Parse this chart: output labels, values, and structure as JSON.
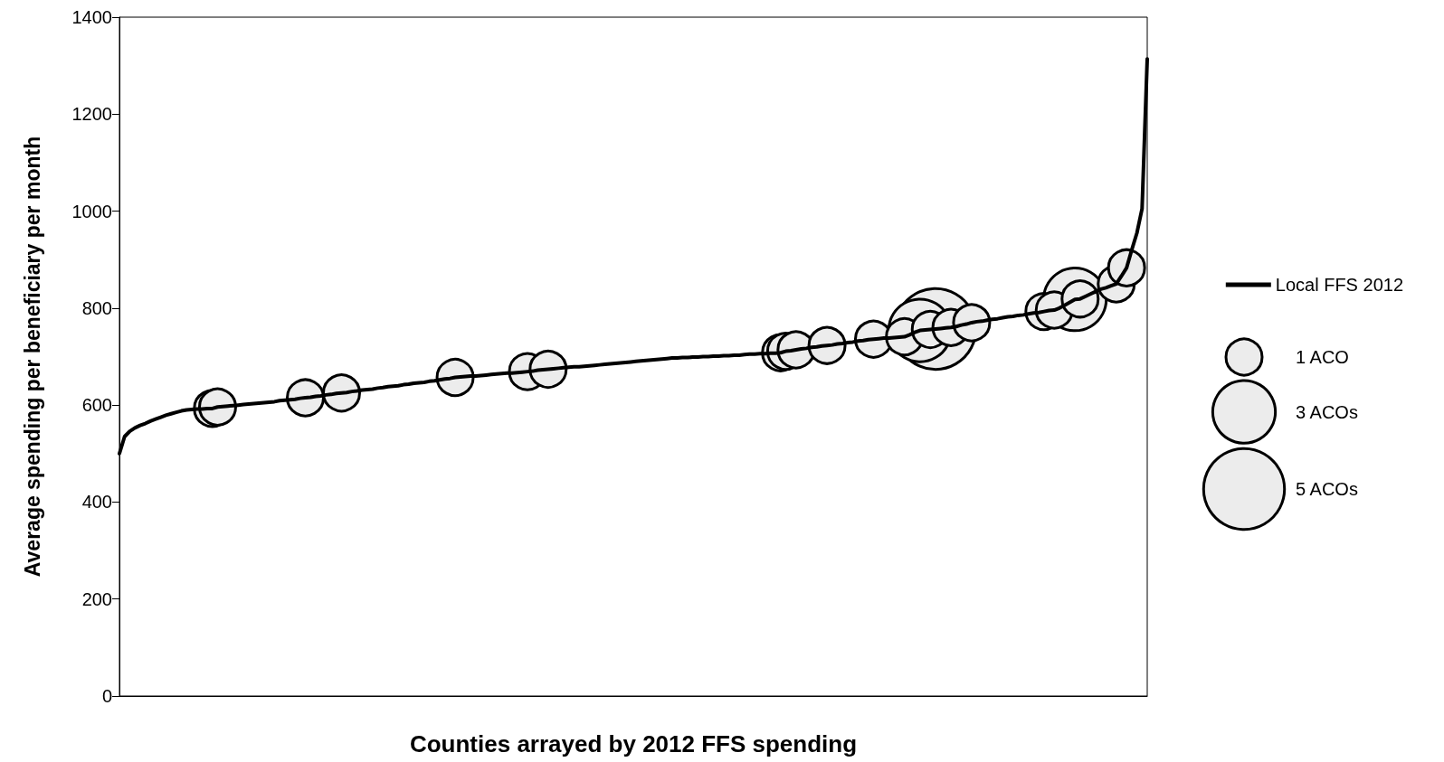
{
  "chart_data": {
    "type": "line",
    "xlabel": "Counties arrayed by 2012 FFS spending",
    "ylabel": "Average spending per beneficiary per month",
    "categories": [
      null,
      null,
      null,
      null,
      null,
      null,
      null,
      null,
      null,
      null,
      null,
      null,
      null,
      null,
      null,
      null,
      null,
      null,
      null,
      null,
      null,
      null,
      null,
      null,
      null,
      null,
      null,
      null,
      null,
      null,
      null,
      null,
      null,
      null,
      null,
      null,
      null,
      null,
      null,
      null,
      null,
      null,
      null,
      null,
      null,
      null,
      null,
      null,
      null,
      null,
      null,
      null,
      null,
      null,
      null,
      null,
      null,
      null,
      null,
      null,
      null,
      null,
      null,
      null,
      null,
      null,
      null,
      null,
      null,
      null,
      null,
      null,
      null,
      null,
      null,
      null,
      null,
      null,
      null,
      null,
      null,
      null,
      null,
      null,
      null,
      null,
      null,
      null,
      null,
      null,
      null,
      null,
      null,
      null,
      null,
      null,
      null,
      null,
      null,
      null,
      null,
      null,
      null,
      null,
      null,
      null,
      null,
      null,
      null,
      null,
      null,
      null,
      null,
      null,
      null,
      null,
      null,
      null,
      null,
      null,
      null,
      null,
      null,
      null,
      null,
      null,
      null,
      null,
      null,
      null,
      null,
      null,
      null,
      null,
      null,
      null,
      null,
      null,
      null,
      null,
      null,
      null,
      null,
      null,
      null,
      null,
      null,
      null,
      null,
      null,
      null,
      null,
      null,
      null,
      null,
      null,
      null,
      null,
      null,
      null,
      null,
      null,
      null,
      null,
      null,
      null,
      null,
      null,
      null,
      null,
      null,
      null,
      null,
      null,
      null,
      null,
      null,
      null,
      null,
      null,
      null,
      null,
      null,
      null,
      null,
      null,
      null,
      null,
      null,
      null,
      null,
      null,
      null,
      null,
      null,
      null,
      null,
      null,
      null,
      null
    ],
    "series": [
      {
        "name": "Local FFS 2012",
        "color": "#000000",
        "values": [
          500,
          535,
          546,
          553,
          558,
          562,
          567,
          571,
          575,
          579,
          582,
          585,
          588,
          590,
          591,
          592,
          592,
          593,
          593,
          596,
          597,
          598,
          599,
          600,
          601,
          602,
          603,
          604,
          605,
          606,
          607,
          609,
          610,
          611,
          612,
          614,
          615,
          616,
          618,
          619,
          621,
          622,
          624,
          625,
          626,
          628,
          629,
          631,
          632,
          633,
          635,
          636,
          638,
          639,
          640,
          642,
          643,
          645,
          646,
          647,
          649,
          650,
          652,
          654,
          655,
          657,
          658,
          659,
          660,
          660,
          661,
          662,
          663,
          664,
          665,
          666,
          666,
          667,
          668,
          669,
          670,
          672,
          673,
          674,
          675,
          676,
          677,
          678,
          679,
          679,
          680,
          681,
          682,
          683,
          684,
          685,
          686,
          687,
          688,
          689,
          690,
          691,
          692,
          693,
          694,
          695,
          696,
          697,
          697,
          698,
          698,
          699,
          699,
          700,
          700,
          701,
          701,
          702,
          702,
          703,
          703,
          704,
          705,
          705,
          706,
          706,
          707,
          707,
          708,
          711,
          712,
          714,
          716,
          717,
          719,
          720,
          722,
          723,
          724,
          726,
          727,
          729,
          730,
          732,
          733,
          735,
          736,
          737,
          738,
          738,
          739,
          740,
          741,
          745,
          750,
          754,
          755,
          756,
          757,
          758,
          759,
          760,
          762,
          765,
          767,
          770,
          772,
          773,
          775,
          777,
          778,
          780,
          782,
          783,
          785,
          786,
          788,
          790,
          791,
          793,
          795,
          796,
          800,
          806,
          812,
          818,
          819,
          824,
          829,
          834,
          839,
          842,
          846,
          850,
          866,
          883,
          920,
          955,
          1005,
          1314
        ]
      },
      {
        "type": "bubble",
        "color": "#ececec",
        "values": [
          null,
          null,
          null,
          null,
          null,
          null,
          null,
          null,
          null,
          null,
          null,
          null,
          null,
          null,
          null,
          null,
          null,
          null,
          593,
          596,
          null,
          null,
          null,
          null,
          null,
          null,
          null,
          null,
          null,
          null,
          null,
          null,
          null,
          null,
          null,
          null,
          615,
          null,
          null,
          null,
          null,
          null,
          null,
          625,
          null,
          null,
          null,
          null,
          null,
          null,
          null,
          null,
          null,
          null,
          null,
          null,
          null,
          null,
          null,
          null,
          null,
          null,
          null,
          null,
          null,
          657,
          null,
          null,
          null,
          null,
          null,
          null,
          null,
          null,
          null,
          null,
          null,
          null,
          null,
          669,
          null,
          null,
          null,
          674,
          null,
          null,
          null,
          null,
          null,
          null,
          null,
          null,
          null,
          null,
          null,
          null,
          null,
          null,
          null,
          null,
          null,
          null,
          null,
          null,
          null,
          null,
          null,
          null,
          null,
          null,
          null,
          null,
          null,
          null,
          null,
          null,
          null,
          null,
          null,
          null,
          null,
          null,
          null,
          null,
          null,
          null,
          null,
          null,
          708,
          711,
          null,
          714,
          null,
          null,
          null,
          null,
          null,
          723,
          null,
          null,
          null,
          null,
          null,
          null,
          null,
          null,
          736,
          null,
          null,
          null,
          null,
          null,
          741,
          null,
          null,
          754,
          null,
          756,
          757,
          null,
          null,
          760,
          null,
          null,
          null,
          770,
          null,
          null,
          null,
          null,
          null,
          null,
          null,
          null,
          null,
          null,
          null,
          null,
          null,
          793,
          null,
          796,
          null,
          null,
          null,
          818,
          819,
          null,
          null,
          null,
          null,
          null,
          null,
          850,
          null,
          883,
          null,
          null,
          null,
          null
        ],
        "sizes": [
          null,
          null,
          null,
          null,
          null,
          null,
          null,
          null,
          null,
          null,
          null,
          null,
          null,
          null,
          null,
          null,
          null,
          null,
          1,
          1,
          null,
          null,
          null,
          null,
          null,
          null,
          null,
          null,
          null,
          null,
          null,
          null,
          null,
          null,
          null,
          null,
          1,
          null,
          null,
          null,
          null,
          null,
          null,
          1,
          null,
          null,
          null,
          null,
          null,
          null,
          null,
          null,
          null,
          null,
          null,
          null,
          null,
          null,
          null,
          null,
          null,
          null,
          null,
          null,
          null,
          1,
          null,
          null,
          null,
          null,
          null,
          null,
          null,
          null,
          null,
          null,
          null,
          null,
          null,
          1,
          null,
          null,
          null,
          1,
          null,
          null,
          null,
          null,
          null,
          null,
          null,
          null,
          null,
          null,
          null,
          null,
          null,
          null,
          null,
          null,
          null,
          null,
          null,
          null,
          null,
          null,
          null,
          null,
          null,
          null,
          null,
          null,
          null,
          null,
          null,
          null,
          null,
          null,
          null,
          null,
          null,
          null,
          null,
          null,
          null,
          null,
          null,
          null,
          1,
          1,
          null,
          1,
          null,
          null,
          null,
          null,
          null,
          1,
          null,
          null,
          null,
          null,
          null,
          null,
          null,
          null,
          1,
          null,
          null,
          null,
          null,
          null,
          1,
          null,
          null,
          3,
          null,
          1,
          5,
          null,
          null,
          1,
          null,
          null,
          null,
          1,
          null,
          null,
          null,
          null,
          null,
          null,
          null,
          null,
          null,
          null,
          null,
          null,
          null,
          1,
          null,
          1,
          null,
          null,
          null,
          3,
          1,
          null,
          null,
          null,
          null,
          null,
          null,
          1,
          null,
          1,
          null,
          null,
          null,
          null
        ]
      }
    ],
    "size_legend": [
      {
        "value": 1,
        "label": "1 ACO"
      },
      {
        "value": 3,
        "label": "3 ACOs"
      },
      {
        "value": 5,
        "label": "5 ACOs"
      }
    ],
    "ylim": [
      0,
      1400
    ],
    "yticks": [
      0,
      200,
      400,
      600,
      800,
      1000,
      1200,
      1400
    ],
    "tick_labels": "y",
    "legend": "right"
  }
}
